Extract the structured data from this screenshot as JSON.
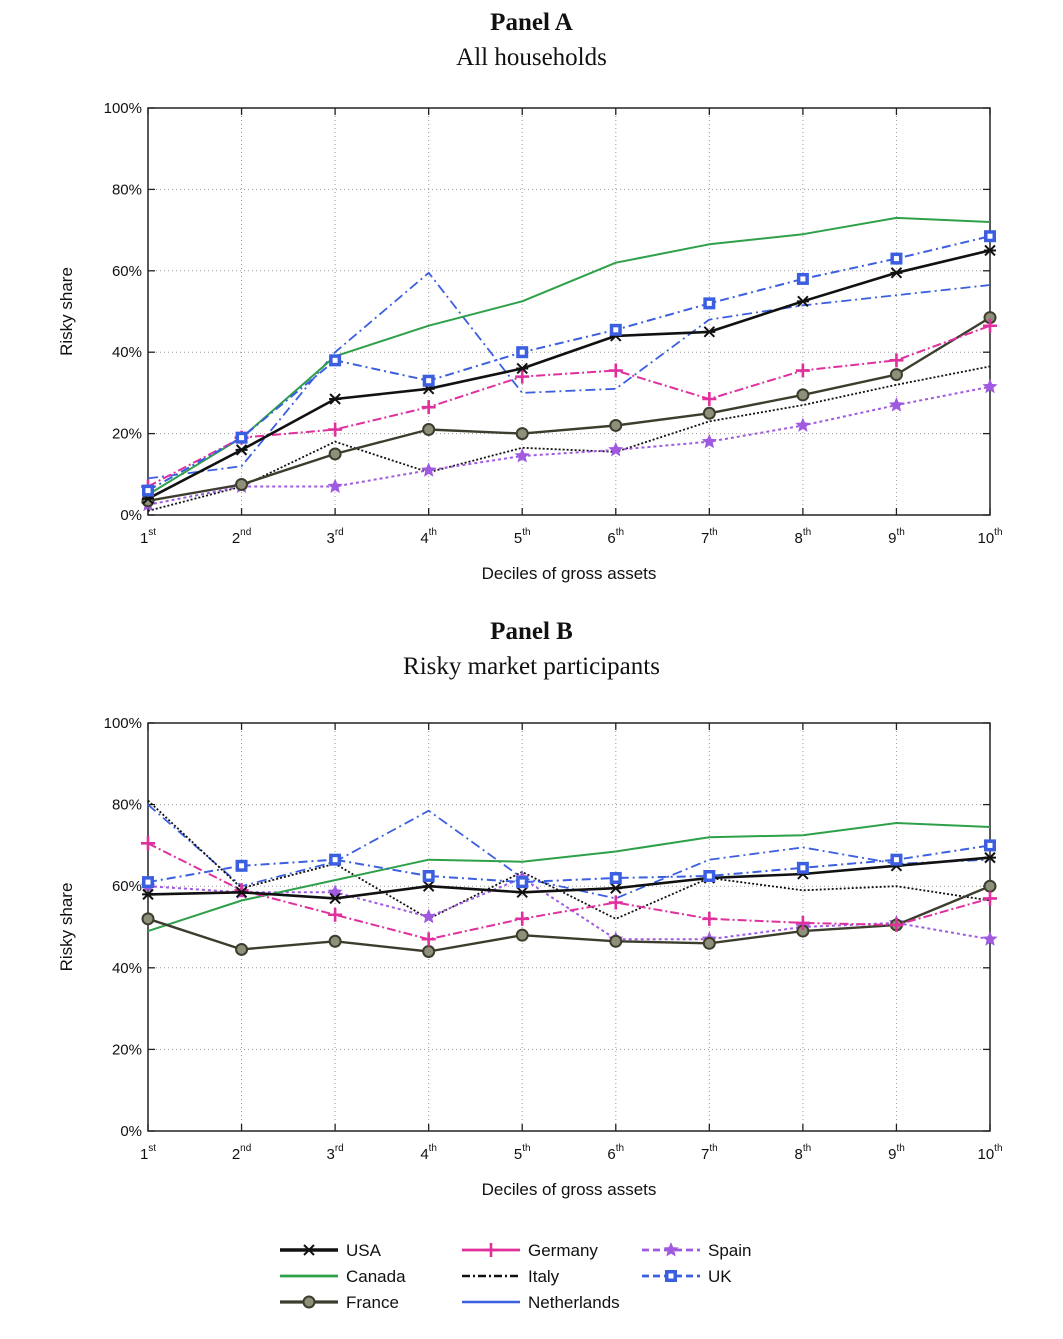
{
  "panels": [
    {
      "title": "Panel A",
      "subtitle": "All households"
    },
    {
      "title": "Panel B",
      "subtitle": "Risky market participants"
    }
  ],
  "colors": {
    "USA": "#111111",
    "Canada": "#2fa04a",
    "France": "#3d3d2e",
    "Germany": "#e0309e",
    "Italy": "#111111",
    "Netherlands": "#3b5fe0",
    "Spain": "#a05ae0",
    "UK": "#3b5fe0"
  },
  "legend": [
    "USA",
    "Canada",
    "France",
    "Germany",
    "Italy",
    "Netherlands",
    "Spain",
    "UK"
  ],
  "chart_data": [
    {
      "type": "line",
      "title": "Panel A",
      "subtitle": "All households",
      "xlabel": "Deciles of gross assets",
      "ylabel": "Risky share",
      "categories": [
        {
          "num": "1",
          "sup": "st"
        },
        {
          "num": "2",
          "sup": "nd"
        },
        {
          "num": "3",
          "sup": "rd"
        },
        {
          "num": "4",
          "sup": "th"
        },
        {
          "num": "5",
          "sup": "th"
        },
        {
          "num": "6",
          "sup": "th"
        },
        {
          "num": "7",
          "sup": "th"
        },
        {
          "num": "8",
          "sup": "th"
        },
        {
          "num": "9",
          "sup": "th"
        },
        {
          "num": "10",
          "sup": "th"
        }
      ],
      "yticks": [
        "0%",
        "20%",
        "40%",
        "60%",
        "80%",
        "100%"
      ],
      "ylim": [
        0,
        100
      ],
      "grid": true,
      "series": [
        {
          "name": "USA",
          "values": [
            4,
            16,
            28.5,
            31,
            36,
            44,
            45,
            52.5,
            59.5,
            65
          ]
        },
        {
          "name": "Canada",
          "values": [
            5,
            19,
            39,
            46.5,
            52.5,
            62,
            66.5,
            69,
            73,
            72
          ]
        },
        {
          "name": "France",
          "values": [
            3.5,
            7.5,
            15,
            21,
            20,
            22,
            25,
            29.5,
            34.5,
            48.5
          ]
        },
        {
          "name": "Germany",
          "values": [
            7,
            19,
            21,
            26.5,
            34,
            35.5,
            28.5,
            35.5,
            38,
            46.5
          ]
        },
        {
          "name": "Italy",
          "values": [
            1,
            7,
            18,
            10.5,
            16.5,
            15.5,
            23,
            27,
            32,
            36.5
          ]
        },
        {
          "name": "Netherlands",
          "values": [
            9,
            12,
            40,
            59.5,
            30,
            31,
            48,
            51.5,
            54,
            56.5
          ]
        },
        {
          "name": "Spain",
          "values": [
            2.5,
            7,
            7,
            11,
            14.5,
            16,
            18,
            22,
            27,
            31.5
          ]
        },
        {
          "name": "UK",
          "values": [
            6,
            19,
            38,
            33,
            40,
            45.5,
            52,
            58,
            63,
            68.5
          ]
        }
      ]
    },
    {
      "type": "line",
      "title": "Panel B",
      "subtitle": "Risky market participants",
      "xlabel": "Deciles of gross assets",
      "ylabel": "Risky share",
      "categories": [
        {
          "num": "1",
          "sup": "st"
        },
        {
          "num": "2",
          "sup": "nd"
        },
        {
          "num": "3",
          "sup": "rd"
        },
        {
          "num": "4",
          "sup": "th"
        },
        {
          "num": "5",
          "sup": "th"
        },
        {
          "num": "6",
          "sup": "th"
        },
        {
          "num": "7",
          "sup": "th"
        },
        {
          "num": "8",
          "sup": "th"
        },
        {
          "num": "9",
          "sup": "th"
        },
        {
          "num": "10",
          "sup": "th"
        }
      ],
      "yticks": [
        "0%",
        "20%",
        "40%",
        "60%",
        "80%",
        "100%"
      ],
      "ylim": [
        0,
        100
      ],
      "grid": true,
      "series": [
        {
          "name": "USA",
          "values": [
            58,
            58.5,
            57,
            60,
            58.5,
            59.5,
            62,
            63,
            65,
            67
          ]
        },
        {
          "name": "Canada",
          "values": [
            49,
            56.5,
            61.5,
            66.5,
            66,
            68.5,
            72,
            72.5,
            75.5,
            74.5
          ]
        },
        {
          "name": "France",
          "values": [
            52,
            44.5,
            46.5,
            44,
            48,
            46.5,
            46,
            49,
            50.5,
            60
          ]
        },
        {
          "name": "Germany",
          "values": [
            70.5,
            59,
            53,
            47,
            52,
            56,
            52,
            51,
            50.5,
            57
          ]
        },
        {
          "name": "Italy",
          "values": [
            81,
            59.5,
            65.5,
            52,
            63.5,
            52,
            62,
            59,
            60,
            56.5
          ]
        },
        {
          "name": "Netherlands",
          "values": [
            80,
            60,
            66,
            78.5,
            62,
            57,
            66.5,
            69.5,
            65.5,
            66.5
          ]
        },
        {
          "name": "Spain",
          "values": [
            60,
            58.5,
            58.5,
            52.5,
            62,
            47,
            47,
            50,
            51,
            47
          ]
        },
        {
          "name": "UK",
          "values": [
            61,
            65,
            66.5,
            62.5,
            61,
            62,
            62.5,
            64.5,
            66.5,
            70
          ]
        }
      ]
    }
  ]
}
